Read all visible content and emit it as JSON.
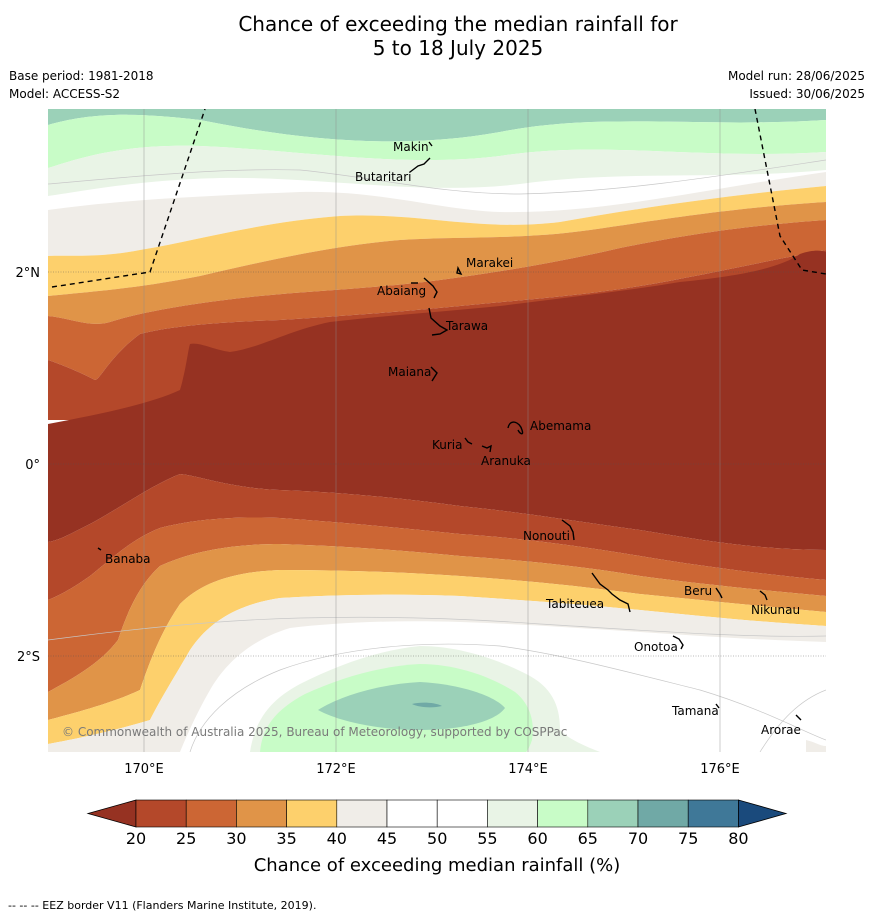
{
  "title_line1": "Chance of exceeding the median rainfall for",
  "title_line2": "5 to 18 July 2025",
  "meta_left": [
    "Base period: 1981-2018",
    "Model: ACCESS-S2"
  ],
  "meta_right": [
    "Model run: 28/06/2025",
    "Issued: 30/06/2025"
  ],
  "lon_ticks": [
    "170°E",
    "172°E",
    "174°E",
    "176°E"
  ],
  "lat_ticks": [
    "2°N",
    "0°",
    "2°S"
  ],
  "places": [
    "Makin",
    "Butaritari",
    "Marakei",
    "Abaiang",
    "Tarawa",
    "Maiana",
    "Abemama",
    "Kuria",
    "Aranuka",
    "Nonouti",
    "Banaba",
    "Tabiteuea",
    "Beru",
    "Nikunau",
    "Onotoa",
    "Tamana",
    "Arorae"
  ],
  "credit": "© Commonwealth of Australia 2025, Bureau of Meteorology, supported by COSPPac",
  "colorbar": {
    "ticks": [
      "20",
      "25",
      "30",
      "35",
      "40",
      "45",
      "50",
      "55",
      "60",
      "65",
      "70",
      "75",
      "80"
    ],
    "colors": [
      "#b4482a",
      "#cc6634",
      "#e09448",
      "#fdd06c",
      "#f0ede8",
      "#ffffff",
      "#ffffff",
      "#e9f4e6",
      "#c8fcc7",
      "#9bd1b8",
      "#70a9a6",
      "#3f7898"
    ],
    "under_color": "#963222",
    "over_color": "#1a4a7c",
    "title": "Chance of exceeding median rainfall (%)"
  },
  "footer": "-- -- -- EEZ border V11 (Flanders Marine Institute, 2019)."
}
